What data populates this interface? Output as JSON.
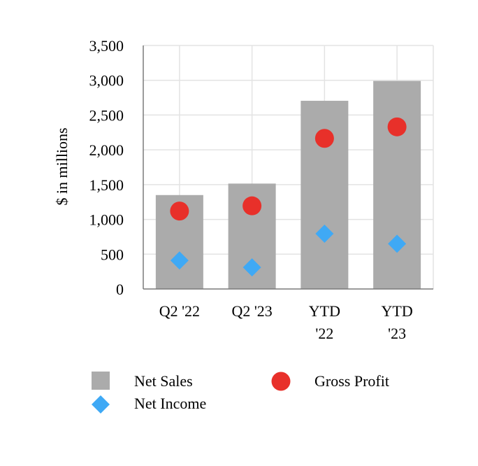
{
  "chart_data": {
    "type": "bar",
    "title": "",
    "xlabel": "",
    "ylabel": "$ in millions",
    "ylim": [
      0,
      3500
    ],
    "yticks": [
      0,
      500,
      1000,
      1500,
      2000,
      2500,
      3000,
      3500
    ],
    "ytick_labels": [
      "0",
      "500",
      "1,000",
      "1,500",
      "2,000",
      "2,500",
      "3,000",
      "3,500"
    ],
    "grid": true,
    "categories": [
      [
        "Q2 '22"
      ],
      [
        "Q2 '23"
      ],
      [
        "YTD",
        "'22"
      ],
      [
        "YTD",
        "'23"
      ]
    ],
    "series": [
      {
        "name": "Net Sales",
        "kind": "bar",
        "color": "#ababab",
        "values": [
          1350,
          1515,
          2705,
          2990
        ]
      },
      {
        "name": "Gross Profit",
        "kind": "circle-marker",
        "color": "#e8302a",
        "values": [
          1120,
          1195,
          2165,
          2330
        ]
      },
      {
        "name": "Net Income",
        "kind": "diamond-marker",
        "color": "#3fa9f5",
        "values": [
          410,
          310,
          795,
          650
        ]
      }
    ],
    "legend": {
      "placement": "bottom",
      "entries": [
        "Net Sales",
        "Net Income",
        "Gross Profit"
      ]
    }
  }
}
